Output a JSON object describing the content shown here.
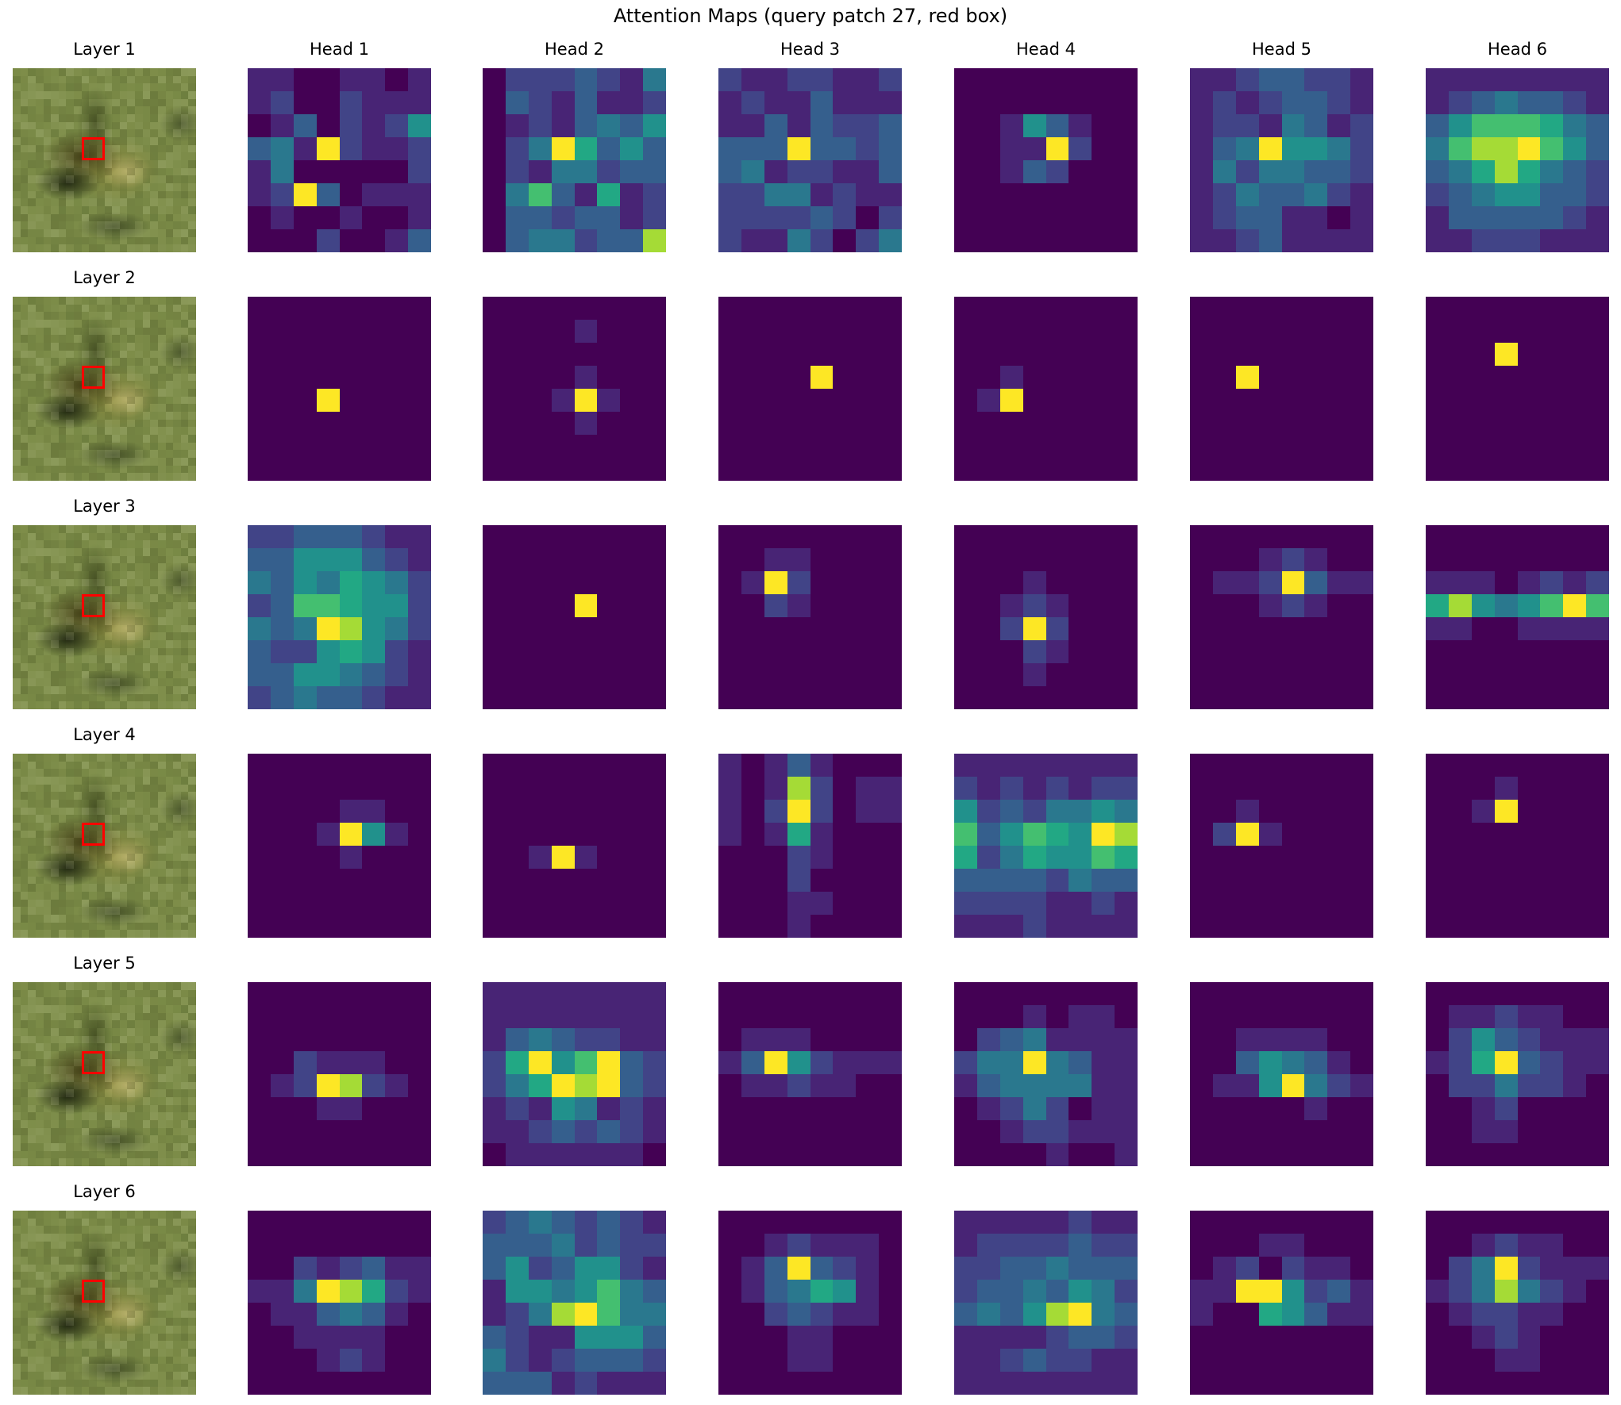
{
  "figure": {
    "title": "Attention Maps (query patch 27, red box)"
  },
  "chart_data": {
    "type": "heatmap",
    "title": "Attention Maps (query patch 27, red box)",
    "colormap": "viridis",
    "grid_size": [
      8,
      8
    ],
    "value_scale": "relative attention, 0 (lowest) to 9 (highest), one digit per patch, rows top to bottom",
    "query_patch": 27,
    "query_box_color": "#ff0000",
    "column_titles": [
      "Head 1",
      "Head 2",
      "Head 3",
      "Head 4",
      "Head 5",
      "Head 6"
    ],
    "layers": [
      {
        "label": "Layer 1",
        "heads": [
          [
            "11001101",
            "12002111",
            "01302125",
            "34192112",
            "14000002",
            "12930111",
            "01001001",
            "00020013"
          ],
          [
            "02223214",
            "03213112",
            "01213435",
            "02496353",
            "02144233",
            "04731612",
            "03323312",
            "03442338"
          ],
          [
            "21122112",
            "12113111",
            "11313223",
            "33393323",
            "34122113",
            "22441211",
            "22223202",
            "21142024"
          ],
          [
            "00000000",
            "00000000",
            "00153100",
            "00119200",
            "00132000",
            "00000000",
            "00000000",
            "00000000"
          ],
          [
            "11233221",
            "12123321",
            "12214312",
            "13495542",
            "14244332",
            "12433421",
            "12331101",
            "11231111"
          ],
          [
            "11111111",
            "12343321",
            "35777643",
            "47889753",
            "34686432",
            "23455332",
            "13333321",
            "11222111"
          ]
        ]
      },
      {
        "label": "Layer 2",
        "heads": [
          [
            "00000000",
            "00000000",
            "00000000",
            "00000000",
            "00090000",
            "00000000",
            "00000000",
            "00000000"
          ],
          [
            "00000000",
            "00001000",
            "00000000",
            "00001000",
            "00019100",
            "00001000",
            "00000000",
            "00000000"
          ],
          [
            "00000000",
            "00000000",
            "00000000",
            "00009000",
            "00000000",
            "00000000",
            "00000000",
            "00000000"
          ],
          [
            "00000000",
            "00000000",
            "00000000",
            "00100000",
            "01900000",
            "00000000",
            "00000000",
            "00000000"
          ],
          [
            "00000000",
            "00000000",
            "00000000",
            "00900000",
            "00000000",
            "00000000",
            "00000000",
            "00000000"
          ],
          [
            "00000000",
            "00000000",
            "00090000",
            "00000000",
            "00000000",
            "00000000",
            "00000000",
            "00000000"
          ]
        ]
      },
      {
        "label": "Layer 3",
        "heads": [
          [
            "22333211",
            "33555321",
            "43546542",
            "23776552",
            "43498542",
            "32256521",
            "33554321",
            "23433211"
          ],
          [
            "00000000",
            "00000000",
            "00000000",
            "00009000",
            "00000000",
            "00000000",
            "00000000",
            "00000000"
          ],
          [
            "00000000",
            "00110000",
            "01920000",
            "00210000",
            "00000000",
            "00000000",
            "00000000",
            "00000000"
          ],
          [
            "00000000",
            "00000000",
            "00010000",
            "00121000",
            "00292000",
            "00021000",
            "00010000",
            "00000000"
          ],
          [
            "00000000",
            "00012100",
            "01129311",
            "00012100",
            "00000000",
            "00000000",
            "00000000",
            "00000000"
          ],
          [
            "00000000",
            "00000000",
            "11101212",
            "68545797",
            "11001111",
            "00000000",
            "00000000",
            "00000000"
          ]
        ]
      },
      {
        "label": "Layer 4",
        "heads": [
          [
            "00000000",
            "00000000",
            "00001100",
            "00019510",
            "00001000",
            "00000000",
            "00000000",
            "00000000"
          ],
          [
            "00000000",
            "00000000",
            "00000000",
            "00000000",
            "00191000",
            "00000000",
            "00000000",
            "00000000"
          ],
          [
            "10131000",
            "10182011",
            "10292011",
            "10161000",
            "00021000",
            "00020000",
            "00011000",
            "00010000"
          ],
          [
            "11111111",
            "21212122",
            "52324454",
            "73576598",
            "62465576",
            "33332433",
            "22221121",
            "11121111"
          ],
          [
            "00000000",
            "00000000",
            "00100000",
            "02910000",
            "00000000",
            "00000000",
            "00000000",
            "00000000"
          ],
          [
            "00000000",
            "00010000",
            "00190000",
            "00000000",
            "00000000",
            "00000000",
            "00000000",
            "00000000"
          ]
        ]
      },
      {
        "label": "Layer 5",
        "heads": [
          [
            "00000000",
            "00000000",
            "00000000",
            "00211100",
            "01298210",
            "00011000",
            "00000000",
            "00000000"
          ],
          [
            "11111111",
            "11111111",
            "13432211",
            "26957932",
            "24698932",
            "12154121",
            "11232321",
            "01111110"
          ],
          [
            "00000000",
            "00000000",
            "01110000",
            "13952111",
            "01121100",
            "00000000",
            "00000000",
            "00000000"
          ],
          [
            "00000000",
            "00010110",
            "02341111",
            "24494311",
            "13444411",
            "01242011",
            "00122111",
            "00001001"
          ],
          [
            "00000000",
            "00000000",
            "00111100",
            "00354310",
            "01159421",
            "00000100",
            "00000000",
            "00000000"
          ],
          [
            "00000000",
            "01121100",
            "02532111",
            "12693211",
            "02242210",
            "00120000",
            "00110000",
            "00000000"
          ]
        ]
      },
      {
        "label": "Layer 6",
        "heads": [
          [
            "00000000",
            "00000000",
            "00212311",
            "11498621",
            "01134310",
            "00111100",
            "00012100",
            "00000000"
          ],
          [
            "23432321",
            "33342322",
            "35235521",
            "15545743",
            "12489744",
            "32115553",
            "42123332",
            "33312111"
          ],
          [
            "00000000",
            "00121110",
            "01393210",
            "01346510",
            "00232110",
            "00011000",
            "00011000",
            "00000000"
          ],
          [
            "11111211",
            "12222322",
            "22334333",
            "23343542",
            "34358943",
            "11112332",
            "11232211",
            "11111111"
          ],
          [
            "00000000",
            "00011000",
            "01202110",
            "11995231",
            "10065311",
            "00000000",
            "00000000",
            "00000000"
          ],
          [
            "00000000",
            "00121100",
            "02492111",
            "12484210",
            "01221100",
            "00121000",
            "00011000",
            "00000000"
          ]
        ]
      }
    ]
  }
}
